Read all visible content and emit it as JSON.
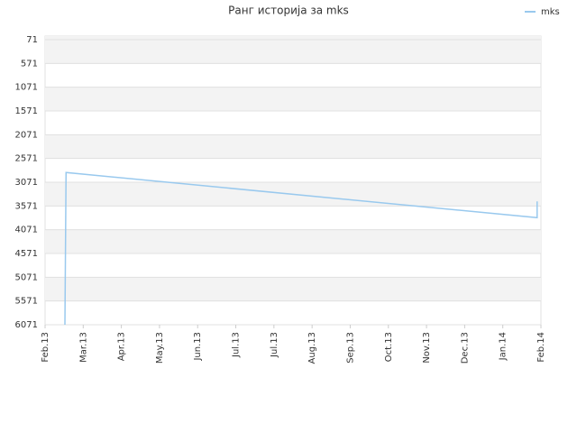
{
  "chart_data": {
    "type": "line",
    "title": "Ранг историја за mks",
    "x": [
      0.52,
      0.55,
      12.9,
      12.9
    ],
    "series": [
      {
        "name": "mks",
        "color": "#99c9ee",
        "values": [
          6071,
          2867,
          3817,
          3475
        ]
      }
    ],
    "xlim": [
      0,
      13
    ],
    "xticks": [
      {
        "value": 0,
        "label": "Feb.13"
      },
      {
        "value": 1,
        "label": "Mar.13"
      },
      {
        "value": 2,
        "label": "Apr.13"
      },
      {
        "value": 3,
        "label": "May.13"
      },
      {
        "value": 4,
        "label": "Jun.13"
      },
      {
        "value": 5,
        "label": "Jul.13"
      },
      {
        "value": 6,
        "label": "Jul.13"
      },
      {
        "value": 7,
        "label": "Aug.13"
      },
      {
        "value": 8,
        "label": "Sep.13"
      },
      {
        "value": 9,
        "label": "Oct.13"
      },
      {
        "value": 10,
        "label": "Nov.13"
      },
      {
        "value": 11,
        "label": "Dec.13"
      },
      {
        "value": 12,
        "label": "Jan.14"
      },
      {
        "value": 13,
        "label": "Feb.14"
      }
    ],
    "ylim": [
      71,
      6071
    ],
    "y_reversed": true,
    "yticks": [
      71,
      571,
      1071,
      1571,
      2071,
      2571,
      3071,
      3571,
      4071,
      4571,
      5071,
      5571,
      6071
    ],
    "grid": true,
    "legend": "top-right"
  }
}
